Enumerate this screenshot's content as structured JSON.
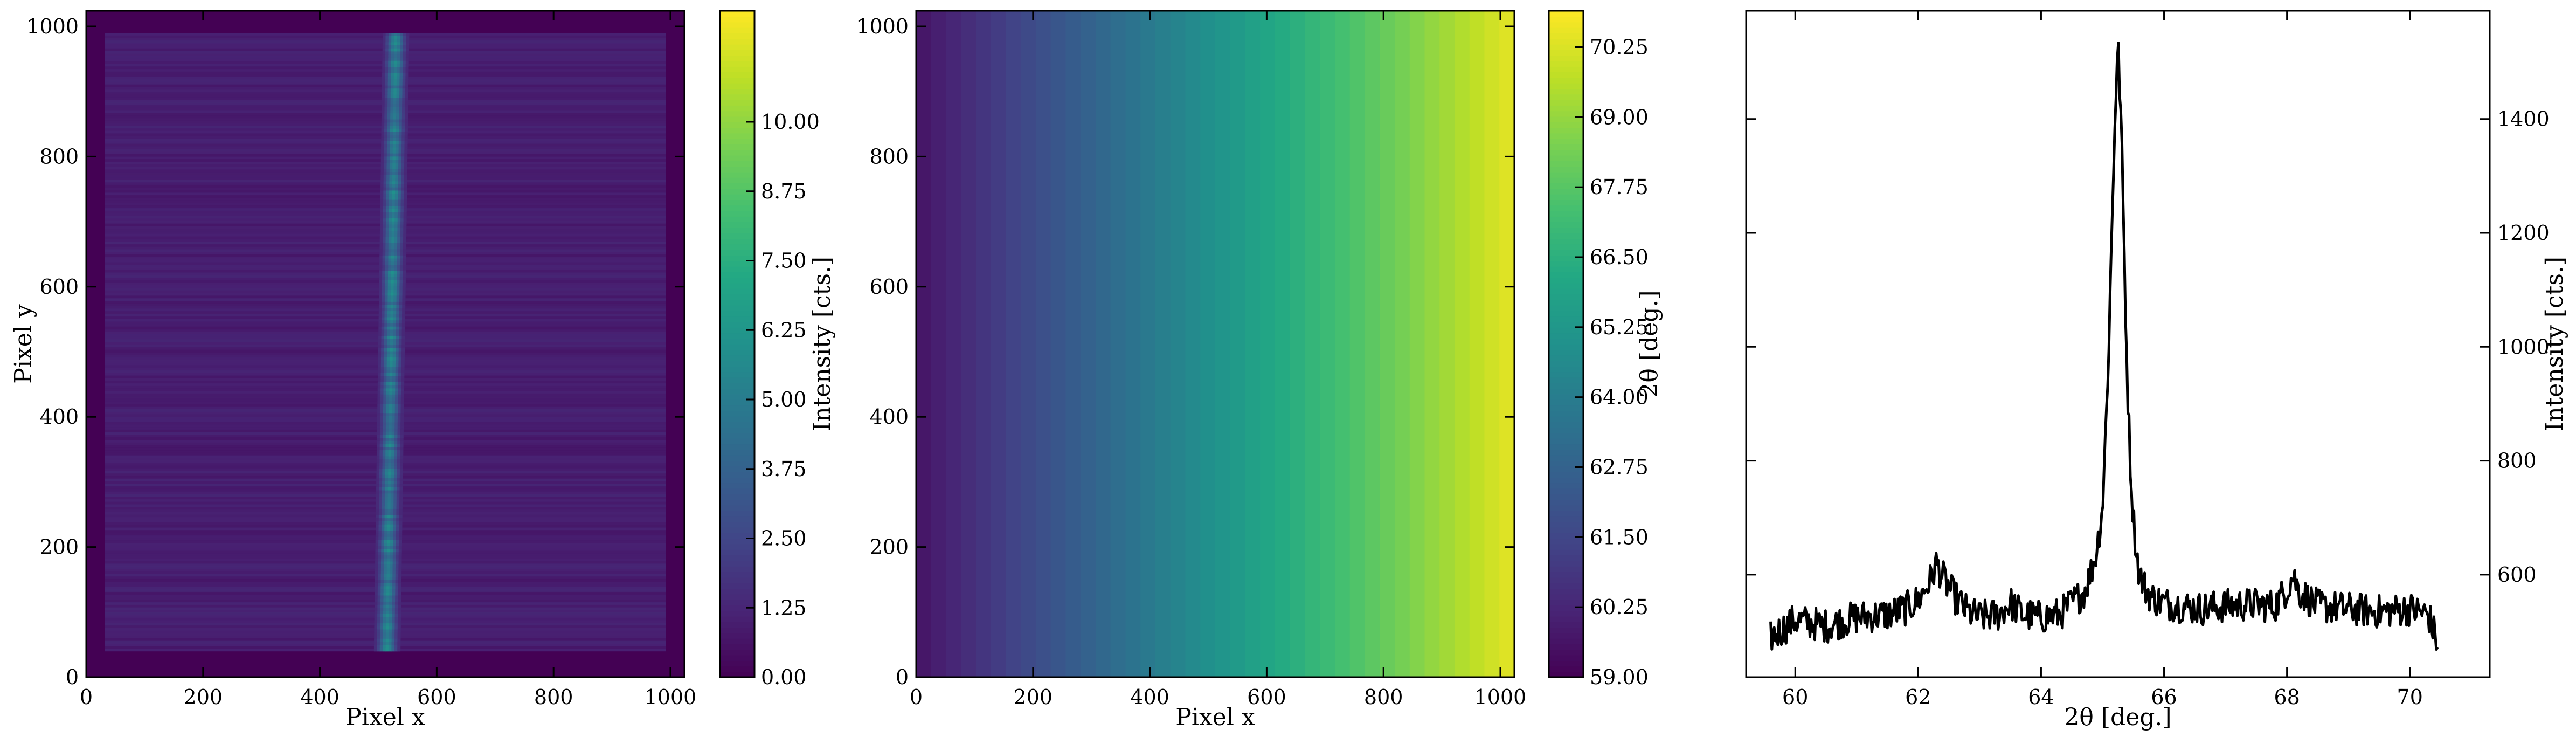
{
  "colors": {
    "viridis": [
      "#440154",
      "#482475",
      "#414487",
      "#355f8d",
      "#2a788e",
      "#21918c",
      "#22a884",
      "#44bf70",
      "#7ad151",
      "#bddf26",
      "#fde725"
    ],
    "line": "#000000"
  },
  "chart_data": [
    {
      "type": "heatmap",
      "xlabel": "Pixel x",
      "ylabel": "Pixel y",
      "xlim": [
        0,
        1024
      ],
      "ylim": [
        0,
        1024
      ],
      "xticks": [
        0,
        200,
        400,
        600,
        800,
        1000
      ],
      "yticks": [
        0,
        200,
        400,
        600,
        800,
        1000
      ],
      "detector_active_region": {
        "x": [
          32,
          992
        ],
        "y": [
          40,
          990
        ]
      },
      "background_intensity": 1.0,
      "stripe": {
        "center_x": [
          530,
          515
        ],
        "width": 45,
        "peak_intensity": 5.0
      },
      "colorbar": {
        "label": "Intensity [cts.]",
        "range": [
          0,
          12
        ],
        "ticks": [
          "0.00",
          "1.25",
          "2.50",
          "3.75",
          "5.00",
          "6.25",
          "7.50",
          "8.75",
          "10.00"
        ],
        "tick_values": [
          0,
          1.25,
          2.5,
          3.75,
          5.0,
          6.25,
          7.5,
          8.75,
          10.0
        ]
      }
    },
    {
      "type": "heatmap",
      "xlabel": "Pixel x",
      "ylabel": "",
      "xlim": [
        0,
        1024
      ],
      "ylim": [
        0,
        1024
      ],
      "xticks": [
        0,
        200,
        400,
        600,
        800,
        1000
      ],
      "yticks": [
        0,
        200,
        400,
        600,
        800,
        1000
      ],
      "gradient": {
        "direction": "x",
        "value_range": [
          59.6,
          70.45
        ],
        "bands": 40
      },
      "colorbar": {
        "label": "2θ [deg.]",
        "range": [
          59.0,
          70.9
        ],
        "ticks": [
          "59.00",
          "60.25",
          "61.50",
          "62.75",
          "64.00",
          "65.25",
          "66.50",
          "67.75",
          "69.00",
          "70.25"
        ],
        "tick_values": [
          59.0,
          60.25,
          61.5,
          62.75,
          64.0,
          65.25,
          66.5,
          67.75,
          69.0,
          70.25
        ]
      }
    },
    {
      "type": "line",
      "xlabel": "2θ [deg.]",
      "ylabel": "Intensity [cts.]",
      "xlim": [
        59.2,
        71.3
      ],
      "ylim": [
        420,
        1590
      ],
      "xticks": [
        60,
        62,
        64,
        66,
        68,
        70
      ],
      "yticks": [
        600,
        800,
        1000,
        1200,
        1400
      ],
      "series": [
        {
          "x": [
            59.6,
            60.0,
            60.5,
            61.0,
            61.5,
            61.8,
            62.0,
            62.2,
            62.3,
            62.4,
            62.6,
            62.8,
            63.0,
            63.3,
            63.5,
            63.7,
            64.0,
            64.3,
            64.5,
            64.7,
            64.8,
            64.9,
            65.0,
            65.05,
            65.1,
            65.15,
            65.2,
            65.25,
            65.3,
            65.35,
            65.4,
            65.45,
            65.5,
            65.55,
            65.6,
            65.7,
            65.8,
            66.0,
            66.3,
            66.6,
            67.0,
            67.4,
            67.8,
            68.0,
            68.1,
            68.2,
            68.5,
            69.0,
            69.5,
            70.0,
            70.3,
            70.45
          ],
          "y": [
            490,
            520,
            510,
            525,
            530,
            540,
            555,
            590,
            620,
            595,
            560,
            535,
            525,
            530,
            550,
            530,
            525,
            530,
            550,
            570,
            600,
            640,
            720,
            850,
            1000,
            1200,
            1400,
            1530,
            1400,
            1180,
            950,
            800,
            700,
            640,
            600,
            575,
            560,
            550,
            545,
            540,
            545,
            548,
            545,
            575,
            600,
            570,
            545,
            540,
            535,
            540,
            530,
            480
          ]
        }
      ]
    }
  ]
}
